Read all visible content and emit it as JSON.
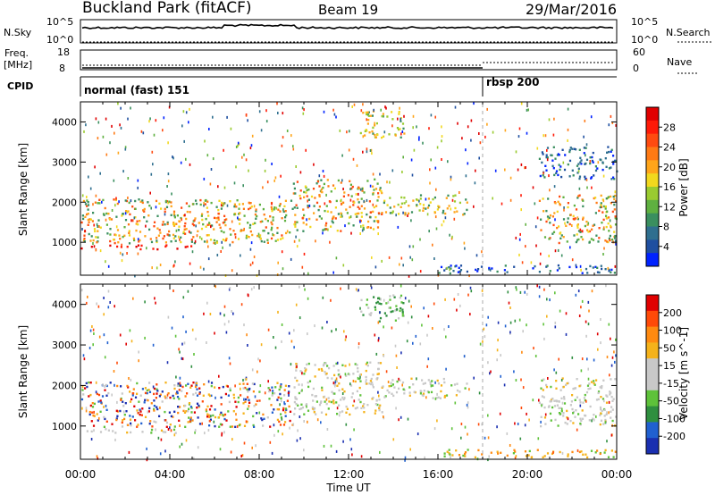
{
  "header": {
    "station": "Buckland Park (fitACF)",
    "beam": "Beam 19",
    "date": "29/Mar/2016"
  },
  "top_panels": {
    "nsky_label": "N.Sky",
    "nsky_ticks": [
      "10^5",
      "10^0"
    ],
    "nsearch_label": "N.Search",
    "nsearch_ticks": [
      "10^5",
      "10^0"
    ],
    "freq_label": "Freq.",
    "freq_unit": "[MHz]",
    "freq_ticks": [
      "18",
      "8"
    ],
    "nave_label": "Nave",
    "nave_ticks": [
      "60",
      "0"
    ],
    "cpid_label": "CPID",
    "cpid_segments": [
      {
        "label": "normal (fast) 151",
        "start_hour": 0
      },
      {
        "label": "rbsp 200",
        "start_hour": 18
      }
    ]
  },
  "chart_data": [
    {
      "type": "heatmap",
      "quantity": "Power",
      "ylabel": "Slant Range [km]",
      "colorbar_label": "Power [dB]",
      "colorbar_ticks": [
        "4",
        "8",
        "12",
        "16",
        "20",
        "24",
        "28"
      ],
      "colorbar_colors": [
        "#0022ff",
        "#1f4fa0",
        "#2f6f8f",
        "#3a8f5f",
        "#5fb040",
        "#9acb30",
        "#f2d81e",
        "#ffa51a",
        "#ff7a14",
        "#ff4b10",
        "#ff1a08",
        "#e00000"
      ],
      "ylim": [
        180,
        4500
      ],
      "yticks": [
        1000,
        2000,
        3000,
        4000
      ],
      "xlim": [
        0,
        24
      ],
      "echo_bands": [
        {
          "t0": 0,
          "t1": 9.5,
          "r0": 1000,
          "r1": 2100,
          "level": "high"
        },
        {
          "t0": 9.5,
          "t1": 13.5,
          "r0": 1300,
          "r1": 2600,
          "level": "high"
        },
        {
          "t0": 13.5,
          "t1": 17.3,
          "r0": 1700,
          "r1": 2200,
          "level": "mid"
        },
        {
          "t0": 0,
          "t1": 5,
          "r0": 850,
          "r1": 950,
          "level": "max"
        },
        {
          "t0": 16,
          "t1": 24,
          "r0": 250,
          "r1": 450,
          "level": "low"
        },
        {
          "t0": 20.5,
          "t1": 24,
          "r0": 1000,
          "r1": 2200,
          "level": "high"
        },
        {
          "t0": 20.5,
          "t1": 24,
          "r0": 2600,
          "r1": 3400,
          "level": "low"
        },
        {
          "t0": 12.5,
          "t1": 14.5,
          "r0": 3600,
          "r1": 4300,
          "level": "mid"
        }
      ]
    },
    {
      "type": "heatmap",
      "quantity": "Velocity",
      "ylabel": "Slant Range [km]",
      "colorbar_label": "Velocity [m s^-1]",
      "colorbar_ticks": [
        "200",
        "100",
        "50",
        "15",
        "-15",
        "-50",
        "-100",
        "-200"
      ],
      "colorbar_colors": [
        "#1a2fb0",
        "#2060d0",
        "#2f8f3f",
        "#5ec23a",
        "#c8c8c8",
        "#c8c8c8",
        "#f5b21a",
        "#ff8a10",
        "#ff4a08",
        "#e00000"
      ],
      "ylim": [
        180,
        4500
      ],
      "yticks": [
        1000,
        2000,
        3000,
        4000
      ],
      "xlim": [
        0,
        24
      ],
      "echo_bands": [
        {
          "t0": 0,
          "t1": 9.5,
          "r0": 1000,
          "r1": 2100,
          "level": "mixed"
        },
        {
          "t0": 9.5,
          "t1": 13.5,
          "r0": 1300,
          "r1": 2600,
          "level": "grey"
        },
        {
          "t0": 13.5,
          "t1": 17.3,
          "r0": 1700,
          "r1": 2200,
          "level": "grey"
        },
        {
          "t0": 0,
          "t1": 5,
          "r0": 850,
          "r1": 950,
          "level": "grey"
        },
        {
          "t0": 16,
          "t1": 24,
          "r0": 250,
          "r1": 450,
          "level": "orange"
        },
        {
          "t0": 20.5,
          "t1": 24,
          "r0": 1000,
          "r1": 2200,
          "level": "grey"
        },
        {
          "t0": 12.5,
          "t1": 14.5,
          "r0": 3600,
          "r1": 4300,
          "level": "green"
        }
      ]
    }
  ],
  "x_axis": {
    "label": "Time UT",
    "ticks": [
      "00:00",
      "04:00",
      "08:00",
      "12:00",
      "16:00",
      "20:00",
      "00:00"
    ]
  }
}
